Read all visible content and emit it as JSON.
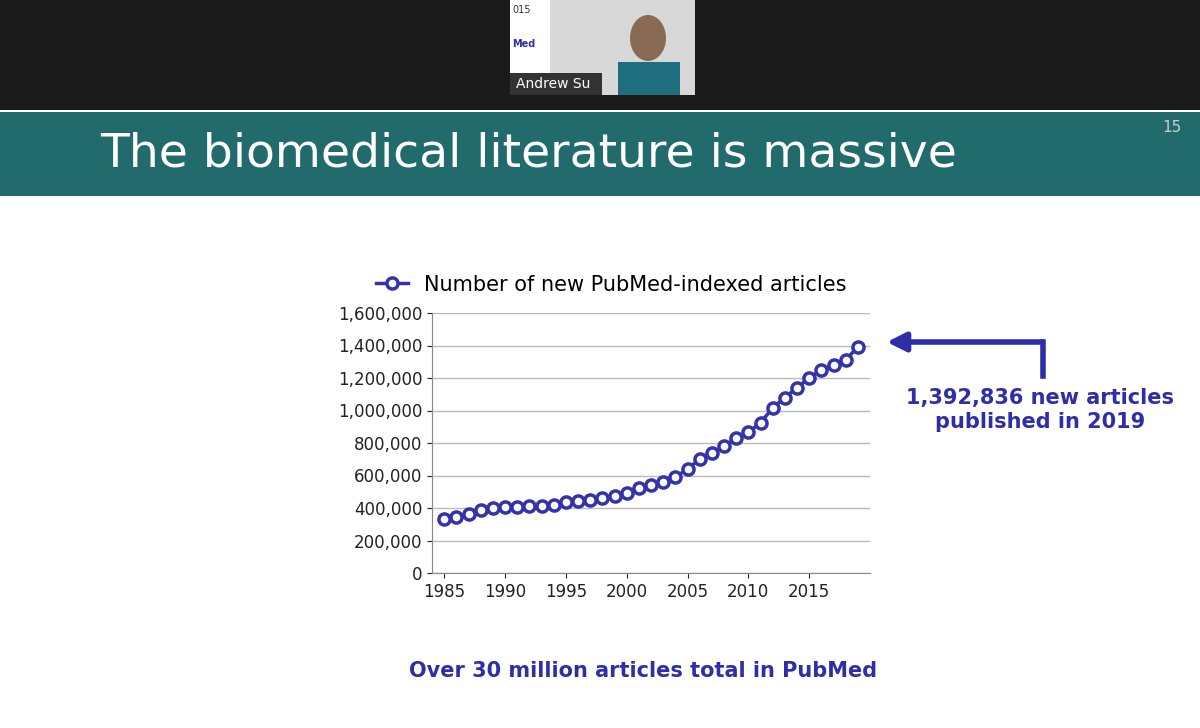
{
  "slide": {
    "number": 15,
    "title": "The biomedical literature is massive",
    "speaker": "Andrew Su",
    "background_texts": [
      "015",
      "Med"
    ],
    "footer": "Over 30 million articles total in PubMed"
  },
  "chart_data": {
    "type": "line",
    "x": [
      1985,
      1986,
      1987,
      1988,
      1989,
      1990,
      1991,
      1992,
      1993,
      1994,
      1995,
      1996,
      1997,
      1998,
      1999,
      2000,
      2001,
      2002,
      2003,
      2004,
      2005,
      2006,
      2007,
      2008,
      2009,
      2010,
      2011,
      2012,
      2013,
      2014,
      2015,
      2016,
      2017,
      2018,
      2019
    ],
    "series": [
      {
        "name": "Number of new PubMed-indexed articles",
        "color": "#3333aa",
        "marker": "o",
        "line_style": "solid",
        "values": [
          330000,
          345000,
          365000,
          385000,
          400000,
          405000,
          408000,
          410000,
          415000,
          420000,
          435000,
          445000,
          450000,
          460000,
          475000,
          495000,
          525000,
          540000,
          560000,
          590000,
          640000,
          700000,
          740000,
          780000,
          830000,
          865000,
          925000,
          1015000,
          1080000,
          1140000,
          1200000,
          1250000,
          1280000,
          1310000,
          1392836
        ]
      }
    ],
    "xlim": [
      1984,
      2020
    ],
    "xticks": [
      1985,
      1990,
      1995,
      2000,
      2005,
      2010,
      2015
    ],
    "ylim": [
      0,
      1600000
    ],
    "yticks": [
      0,
      {
        "value": 200000,
        "label": "200,000"
      },
      {
        "value": 400000,
        "label": "400,000"
      },
      {
        "value": 600000,
        "label": "600,000"
      },
      {
        "value": 800000,
        "label": "800,000"
      },
      {
        "value": 1000000,
        "label": "1,000,000"
      },
      {
        "value": 1200000,
        "label": "1,200,000"
      },
      {
        "value": 1400000,
        "label": "1,400,000"
      },
      {
        "value": 1600000,
        "label": "1,600,000"
      }
    ],
    "grid": true,
    "legend": "upper center",
    "annotations": [
      "1,392,836 new articles\npublished in 2019"
    ]
  }
}
